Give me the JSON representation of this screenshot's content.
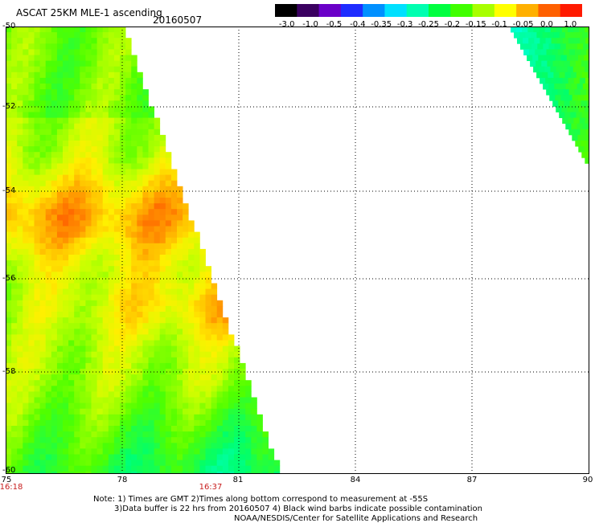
{
  "header": {
    "title": "ASCAT 25KM MLE-1 ascending",
    "date": "20160507"
  },
  "colorbar": {
    "labels": [
      "-3.0",
      "-1.0",
      "-0.5",
      "-0.4",
      "-0.35",
      "-0.3",
      "-0.25",
      "-0.2",
      "-0.15",
      "-0.1",
      "-0.05",
      "0.0",
      "1.0"
    ],
    "colors": [
      "#000000",
      "#3a0060",
      "#6a00c8",
      "#1e2cff",
      "#0090ff",
      "#00e0ff",
      "#00ffb0",
      "#00ff40",
      "#40ff00",
      "#a8ff00",
      "#ffff00",
      "#ffb000",
      "#ff6000",
      "#ff1a00"
    ]
  },
  "map": {
    "lon_ticks": [
      "75",
      "78",
      "81",
      "84",
      "87",
      "90"
    ],
    "lat_ticks": [
      "-50",
      "-52",
      "-54",
      "-56",
      "-58",
      "-60"
    ],
    "time_labels": [
      "16:18",
      "16:37"
    ]
  },
  "footer": {
    "line1": "Note: 1) Times are GMT 2)Times along bottom correspond to measurement at -55S",
    "line2": "3)Data buffer is 22 hrs from 20160507 4) Black wind barbs indicate possible contamination",
    "line3": "NOAA/NESDIS/Center for Satellite Applications and Research"
  }
}
